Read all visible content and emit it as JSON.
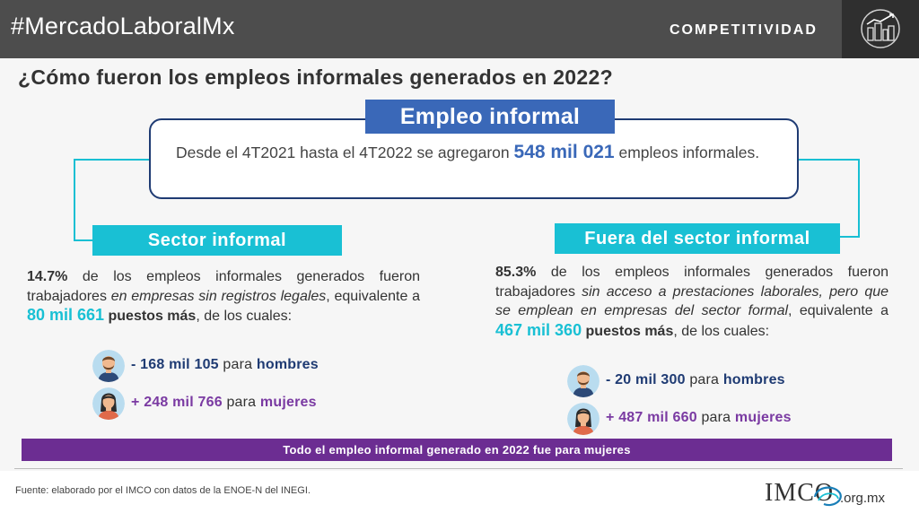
{
  "header": {
    "hashtag": "#MercadoLaboralMx",
    "section": "COMPETITIVIDAD",
    "icon": "city-growth-chart-icon"
  },
  "title": "¿Cómo fueron los empleos informales generados en 2022?",
  "center": {
    "title": "Empleo informal",
    "text_before": "Desde el 4T2021 hasta el 4T2022 se agregaron ",
    "highlight": "548 mil 021",
    "text_after": " empleos informales."
  },
  "left": {
    "title": "Sector informal",
    "pct": "14.7%",
    "t1": " de los empleos informales generados fueron trabajadores ",
    "italic": "en empresas sin registros legales",
    "t2": ", equivalente a ",
    "amount": "80 mil 661",
    "bold_after": " puestos más",
    "t3": ", de los cuales:",
    "men": {
      "sign_num": "- 168 mil 105",
      "para": " para ",
      "who": "hombres",
      "icon": "man-avatar-icon"
    },
    "women": {
      "sign_num": "+ 248 mil 766",
      "para": " para ",
      "who": "mujeres",
      "icon": "woman-avatar-icon"
    }
  },
  "right": {
    "title": "Fuera del sector informal",
    "pct": "85.3%",
    "t1": " de los empleos informales generados fueron trabajadores ",
    "italic": "sin acceso a prestaciones laborales, pero que se emplean en empresas del sector formal",
    "t2": ", equivalente a ",
    "amount": "467 mil 360",
    "bold_after": " puestos más",
    "t3": ", de los cuales:",
    "men": {
      "sign_num": "- 20 mil 300",
      "para": " para ",
      "who": "hombres",
      "icon": "man-avatar-icon"
    },
    "women": {
      "sign_num": "+ 487 mil 660",
      "para": " para ",
      "who": "mujeres",
      "icon": "woman-avatar-icon"
    }
  },
  "banner": "Todo el empleo informal generado en 2022 fue para mujeres",
  "source": "Fuente: elaborado por el IMCO con datos de la ENOE-N del INEGI.",
  "logo": {
    "name": "IMCO",
    "domain": ".org.mx"
  },
  "colors": {
    "header_bg": "#4d4d4d",
    "navy": "#1f3b73",
    "blue": "#3a68b8",
    "cyan": "#19c0d4",
    "purple": "#6c2d92"
  }
}
